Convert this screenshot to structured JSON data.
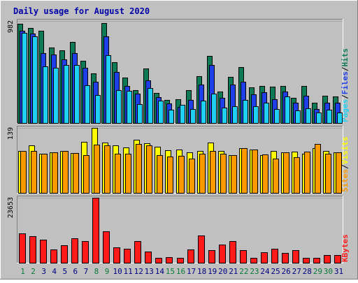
{
  "chart_data": {
    "type": "bar",
    "title": "Daily usage for August 2020",
    "categories": [
      "1",
      "2",
      "3",
      "4",
      "5",
      "6",
      "7",
      "8",
      "9",
      "10",
      "11",
      "12",
      "13",
      "14",
      "15",
      "16",
      "17",
      "18",
      "19",
      "20",
      "21",
      "22",
      "23",
      "24",
      "25",
      "26",
      "27",
      "28",
      "29",
      "30",
      "31"
    ],
    "weekend_days": [
      "1",
      "2",
      "8",
      "9",
      "15",
      "16",
      "22",
      "23",
      "29",
      "30"
    ],
    "panels": [
      {
        "id": "hits-files-pages",
        "ymax_label": "982",
        "ylim": [
          0,
          982
        ],
        "right_label_parts": [
          "Pages",
          "/",
          "Files",
          "/",
          "Hits"
        ],
        "series": [
          {
            "name": "Hits",
            "color": "#0e7a55",
            "values": [
              956,
              914,
              889,
              728,
              697,
              780,
              596,
              477,
              961,
              587,
              434,
              313,
              523,
              292,
              221,
              229,
              313,
              451,
              648,
              302,
              445,
              538,
              344,
              357,
              353,
              357,
              239,
              354,
              197,
              263,
              254
            ]
          },
          {
            "name": "Files",
            "color": "#1e3ee8",
            "values": [
              887,
              863,
              672,
              656,
              610,
              673,
              533,
              394,
              837,
              489,
              354,
              281,
              407,
              248,
              191,
              153,
              221,
              372,
              556,
              240,
              368,
              399,
              275,
              294,
              231,
              302,
              195,
              263,
              134,
              195,
              196
            ]
          },
          {
            "name": "Pages",
            "color": "#20d0f2",
            "values": [
              869,
              836,
              544,
              531,
              557,
              560,
              365,
              268,
              654,
              314,
              309,
              184,
              339,
              214,
              130,
              178,
              136,
              213,
              282,
              151,
              160,
              224,
              160,
              195,
              133,
              257,
              120,
              144,
              102,
              125,
              100
            ]
          }
        ]
      },
      {
        "id": "visits-sites",
        "ymax_label": "139",
        "ylim": [
          0,
          139
        ],
        "right_label_parts": [
          "Sites",
          "/",
          "Visits"
        ],
        "series": [
          {
            "name": "Visits",
            "color": "#ffff00",
            "values": [
              89,
              101,
              84,
              87,
              90,
              85,
              109,
              139,
              108,
              101,
              97,
              114,
              106,
              99,
              91,
              92,
              87,
              90,
              107,
              90,
              80,
              95,
              93,
              81,
              90,
              87,
              88,
              84,
              96,
              90,
              87
            ]
          },
          {
            "name": "Sites",
            "color": "#ff9900",
            "values": [
              89,
              89,
              84,
              87,
              90,
              85,
              80,
              103,
              101,
              84,
              84,
              105,
              101,
              81,
              77,
              79,
              73,
              84,
              89,
              84,
              80,
              95,
              93,
              82,
              73,
              86,
              76,
              88,
              104,
              84,
              87
            ]
          }
        ]
      },
      {
        "id": "kbytes",
        "ymax_label": "23653",
        "ylim": [
          0,
          23653
        ],
        "right_label_parts": [
          "KBytes"
        ],
        "series": [
          {
            "name": "KBytes",
            "color": "#ff1a1a",
            "values": [
              10700,
              9600,
              8500,
              4800,
              6300,
              8900,
              8000,
              23653,
              11400,
              5500,
              5200,
              7800,
              4000,
              1800,
              2100,
              1800,
              4900,
              9800,
              4500,
              6700,
              8000,
              4700,
              1800,
              3900,
              5000,
              3600,
              4500,
              1700,
              1800,
              2900,
              2700
            ]
          }
        ]
      }
    ]
  }
}
